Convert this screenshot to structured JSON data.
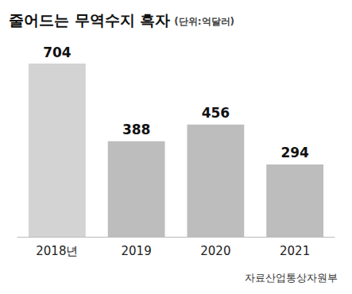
{
  "chart_data": {
    "type": "bar",
    "title": "줄어드는 무역수지 흑자",
    "subtitle": "(단위:억달러)",
    "categories": [
      "2018년",
      "2019",
      "2020",
      "2021"
    ],
    "values": [
      704,
      388,
      456,
      294
    ],
    "colors": [
      "#d3d3d3",
      "#bdbdbd",
      "#bdbdbd",
      "#bdbdbd"
    ],
    "ylim": [
      0,
      704
    ],
    "grid": false,
    "data_labels": true,
    "tick_labels": "x",
    "annotations": [
      "자료산업통상자원부"
    ]
  }
}
